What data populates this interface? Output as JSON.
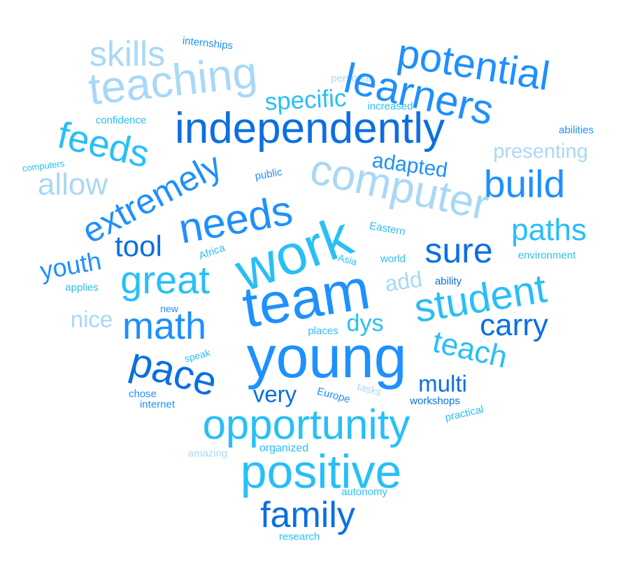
{
  "title": "Word cloud (heart shape)",
  "palette": {
    "dark": "#0c6fe1",
    "medium": "#1e90ff",
    "mid_cyan": "#12b0f3",
    "cyan": "#28bff7",
    "pale": "#a9d8f7"
  },
  "words": [
    {
      "text": "internships",
      "color": "medium"
    },
    {
      "text": "skills",
      "color": "pale"
    },
    {
      "text": "potential",
      "color": "medium"
    },
    {
      "text": "teaching",
      "color": "pale"
    },
    {
      "text": "personal",
      "color": "pale"
    },
    {
      "text": "learners",
      "color": "medium"
    },
    {
      "text": "specific",
      "color": "cyan"
    },
    {
      "text": "increased",
      "color": "cyan"
    },
    {
      "text": "confidence",
      "color": "cyan"
    },
    {
      "text": "independently",
      "color": "dark"
    },
    {
      "text": "feeds",
      "color": "cyan"
    },
    {
      "text": "abilities",
      "color": "medium"
    },
    {
      "text": "presenting",
      "color": "pale"
    },
    {
      "text": "computers",
      "color": "cyan"
    },
    {
      "text": "adapted",
      "color": "medium"
    },
    {
      "text": "computer",
      "color": "pale"
    },
    {
      "text": "allow",
      "color": "pale"
    },
    {
      "text": "public",
      "color": "medium"
    },
    {
      "text": "extremely",
      "color": "medium"
    },
    {
      "text": "build",
      "color": "medium"
    },
    {
      "text": "needs",
      "color": "medium"
    },
    {
      "text": "paths",
      "color": "cyan"
    },
    {
      "text": "tool",
      "color": "dark"
    },
    {
      "text": "Eastern",
      "color": "cyan"
    },
    {
      "text": "Africa",
      "color": "cyan"
    },
    {
      "text": "sure",
      "color": "dark"
    },
    {
      "text": "work",
      "color": "cyan"
    },
    {
      "text": "environment",
      "color": "cyan"
    },
    {
      "text": "youth",
      "color": "medium"
    },
    {
      "text": "Asia",
      "color": "cyan"
    },
    {
      "text": "world",
      "color": "cyan"
    },
    {
      "text": "great",
      "color": "cyan"
    },
    {
      "text": "applies",
      "color": "cyan"
    },
    {
      "text": "add",
      "color": "pale"
    },
    {
      "text": "ability",
      "color": "dark"
    },
    {
      "text": "student",
      "color": "cyan"
    },
    {
      "text": "team",
      "color": "medium"
    },
    {
      "text": "nice",
      "color": "pale"
    },
    {
      "text": "new",
      "color": "medium"
    },
    {
      "text": "math",
      "color": "medium"
    },
    {
      "text": "dys",
      "color": "cyan"
    },
    {
      "text": "places",
      "color": "cyan"
    },
    {
      "text": "carry",
      "color": "dark"
    },
    {
      "text": "teach",
      "color": "cyan"
    },
    {
      "text": "speak",
      "color": "cyan"
    },
    {
      "text": "pace",
      "color": "dark"
    },
    {
      "text": "young",
      "color": "medium"
    },
    {
      "text": "multi",
      "color": "dark"
    },
    {
      "text": "very",
      "color": "dark"
    },
    {
      "text": "chose",
      "color": "medium"
    },
    {
      "text": "tasks",
      "color": "pale"
    },
    {
      "text": "Europe",
      "color": "medium"
    },
    {
      "text": "internet",
      "color": "medium"
    },
    {
      "text": "workshops",
      "color": "dark"
    },
    {
      "text": "practical",
      "color": "cyan"
    },
    {
      "text": "opportunity",
      "color": "cyan"
    },
    {
      "text": "amazing",
      "color": "pale"
    },
    {
      "text": "organized",
      "color": "cyan"
    },
    {
      "text": "positive",
      "color": "cyan"
    },
    {
      "text": "autonomy",
      "color": "cyan"
    },
    {
      "text": "family",
      "color": "dark"
    },
    {
      "text": "research",
      "color": "cyan"
    }
  ]
}
